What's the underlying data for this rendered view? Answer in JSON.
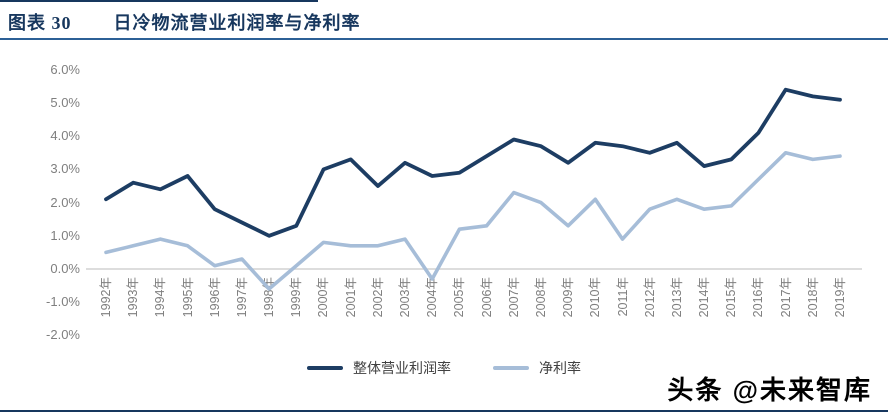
{
  "header": {
    "figure_label": "图表 30",
    "title": "日冷物流营业利润率与净利率"
  },
  "watermark": "头条 @未来智库",
  "colors": {
    "title_navy": "#17375e",
    "underline_blue": "#2c6096",
    "axis_gray": "#d2d2d2",
    "label_gray": "#7f7f7f",
    "series_dark": "#1d3d63",
    "series_light": "#a6bdd8"
  },
  "chart_data": {
    "type": "line",
    "title": "日冷物流营业利润率与净利率",
    "xlabel": "",
    "ylabel": "",
    "ylim": [
      -2,
      6
    ],
    "y_tick_step": 1,
    "y_tick_labels": [
      "6.0%",
      "5.0%",
      "4.0%",
      "3.0%",
      "2.0%",
      "1.0%",
      "0.0%",
      "-1.0%",
      "-2.0%"
    ],
    "grid": "zero-axis-only",
    "legend_position": "bottom-center",
    "x_labels_rotated": true,
    "categories": [
      "1992年",
      "1993年",
      "1994年",
      "1995年",
      "1996年",
      "1997年",
      "1998年",
      "1999年",
      "2000年",
      "2001年",
      "2002年",
      "2003年",
      "2004年",
      "2005年",
      "2006年",
      "2007年",
      "2008年",
      "2009年",
      "2010年",
      "2011年",
      "2012年",
      "2013年",
      "2014年",
      "2015年",
      "2016年",
      "2017年",
      "2018年",
      "2019年"
    ],
    "series": [
      {
        "name": "整体营业利润率",
        "color": "#1d3d63",
        "values": [
          2.1,
          2.6,
          2.4,
          2.8,
          1.8,
          1.4,
          1.0,
          1.3,
          3.0,
          3.3,
          2.5,
          3.2,
          2.8,
          2.9,
          3.4,
          3.9,
          3.7,
          3.2,
          3.8,
          3.7,
          3.5,
          3.8,
          3.1,
          3.3,
          4.1,
          5.4,
          5.2,
          5.1
        ]
      },
      {
        "name": "净利率",
        "color": "#a6bdd8",
        "values": [
          0.5,
          0.7,
          0.9,
          0.7,
          0.1,
          0.3,
          -0.6,
          0.1,
          0.8,
          0.7,
          0.7,
          0.9,
          -0.3,
          1.2,
          1.3,
          2.3,
          2.0,
          1.3,
          2.1,
          0.9,
          1.8,
          2.1,
          1.8,
          1.9,
          2.7,
          3.5,
          3.3,
          3.4
        ]
      }
    ]
  }
}
